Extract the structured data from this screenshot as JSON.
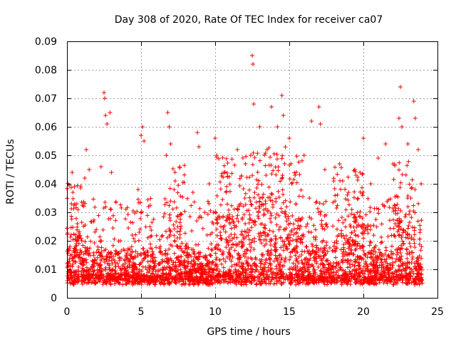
{
  "chart_data": {
    "type": "scatter",
    "title": "Day 308 of 2020, Rate Of TEC Index for receiver ca07",
    "xlabel": "GPS time / hours",
    "ylabel": "ROTI / TECUs",
    "xlim": [
      0,
      25
    ],
    "ylim": [
      0,
      0.09
    ],
    "xticks": [
      "0",
      "5",
      "10",
      "15",
      "20",
      "25"
    ],
    "xtick_values": [
      0,
      5,
      10,
      15,
      20,
      25
    ],
    "yticks": [
      "0",
      "0.01",
      "0.02",
      "0.03",
      "0.04",
      "0.05",
      "0.06",
      "0.07",
      "0.08",
      "0.09"
    ],
    "ytick_values": [
      0,
      0.01,
      0.02,
      0.03,
      0.04,
      0.05,
      0.06,
      0.07,
      0.08,
      0.09
    ],
    "grid": true,
    "marker": "plus",
    "series_color": "#ff0000",
    "data_x_range": [
      0,
      24
    ],
    "series": [
      {
        "points": [
          [
            0.1,
            0.012
          ],
          [
            0.2,
            0.018
          ],
          [
            0.3,
            0.033
          ],
          [
            0.35,
            0.044
          ],
          [
            0.4,
            0.037
          ],
          [
            0.5,
            0.009
          ],
          [
            0.7,
            0.026
          ],
          [
            0.8,
            0.014
          ],
          [
            1.0,
            0.02
          ],
          [
            1.2,
            0.042
          ],
          [
            1.3,
            0.052
          ],
          [
            1.5,
            0.045
          ],
          [
            1.7,
            0.013
          ],
          [
            2.0,
            0.016
          ],
          [
            2.3,
            0.046
          ],
          [
            2.5,
            0.072
          ],
          [
            2.55,
            0.07
          ],
          [
            2.6,
            0.064
          ],
          [
            2.7,
            0.061
          ],
          [
            2.9,
            0.065
          ],
          [
            3.0,
            0.044
          ],
          [
            3.3,
            0.011
          ],
          [
            3.6,
            0.02
          ],
          [
            4.0,
            0.015
          ],
          [
            4.4,
            0.022
          ],
          [
            4.8,
            0.038
          ],
          [
            5.0,
            0.057
          ],
          [
            5.1,
            0.06
          ],
          [
            5.2,
            0.055
          ],
          [
            5.5,
            0.032
          ],
          [
            5.9,
            0.012
          ],
          [
            6.3,
            0.018
          ],
          [
            6.7,
            0.05
          ],
          [
            6.8,
            0.065
          ],
          [
            6.9,
            0.06
          ],
          [
            7.0,
            0.054
          ],
          [
            7.3,
            0.041
          ],
          [
            7.6,
            0.046
          ],
          [
            8.0,
            0.018
          ],
          [
            8.5,
            0.037
          ],
          [
            8.8,
            0.058
          ],
          [
            8.9,
            0.053
          ],
          [
            9.3,
            0.03
          ],
          [
            9.6,
            0.04
          ],
          [
            10.0,
            0.056
          ],
          [
            10.1,
            0.05
          ],
          [
            10.6,
            0.044
          ],
          [
            11.0,
            0.026
          ],
          [
            11.5,
            0.052
          ],
          [
            12.0,
            0.035
          ],
          [
            12.4,
            0.05
          ],
          [
            12.5,
            0.085
          ],
          [
            12.55,
            0.082
          ],
          [
            12.6,
            0.068
          ],
          [
            13.0,
            0.06
          ],
          [
            13.5,
            0.052
          ],
          [
            13.8,
            0.067
          ],
          [
            14.2,
            0.06
          ],
          [
            14.5,
            0.071
          ],
          [
            14.6,
            0.064
          ],
          [
            15.0,
            0.056
          ],
          [
            15.4,
            0.043
          ],
          [
            16.0,
            0.05
          ],
          [
            16.5,
            0.062
          ],
          [
            17.0,
            0.067
          ],
          [
            17.1,
            0.061
          ],
          [
            17.4,
            0.045
          ],
          [
            18.0,
            0.041
          ],
          [
            18.4,
            0.047
          ],
          [
            19.0,
            0.037
          ],
          [
            19.5,
            0.043
          ],
          [
            20.0,
            0.056
          ],
          [
            20.5,
            0.04
          ],
          [
            21.0,
            0.049
          ],
          [
            21.5,
            0.054
          ],
          [
            22.0,
            0.047
          ],
          [
            22.4,
            0.063
          ],
          [
            22.5,
            0.074
          ],
          [
            22.6,
            0.06
          ],
          [
            23.0,
            0.054
          ],
          [
            23.2,
            0.035
          ],
          [
            23.4,
            0.069
          ],
          [
            23.5,
            0.063
          ],
          [
            23.7,
            0.052
          ],
          [
            23.9,
            0.04
          ]
        ]
      }
    ]
  }
}
